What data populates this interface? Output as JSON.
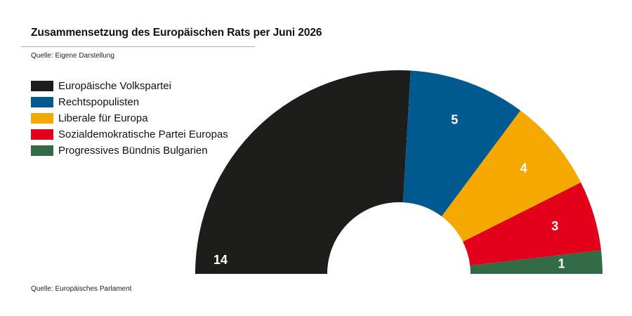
{
  "header": {
    "title": "Zusammensetzung des Europäischen Rats per Juni 2026",
    "subtitle": "Quelle: Eigene Darstellung"
  },
  "footer": {
    "source": "Quelle: Europäisches Parlament"
  },
  "chart_data": {
    "type": "pie",
    "subtype": "half-donut",
    "title": "Zusammensetzung des Europäischen Rats per Juni 2026",
    "categories": [
      "Europäische Volkspartei",
      "Rechtspopulisten",
      "Liberale für Europa",
      "Sozialdemokratische Partei Europas",
      "Progressives Bündnis Bulgarien"
    ],
    "values": [
      14,
      5,
      4,
      3,
      1
    ],
    "labels": [
      "14",
      "5",
      "4",
      "3",
      "1"
    ],
    "colors": [
      "#1d1d1b",
      "#005a8f",
      "#f5a800",
      "#e2001a",
      "#336b47"
    ],
    "legend_position": "top-left",
    "grid": false
  }
}
